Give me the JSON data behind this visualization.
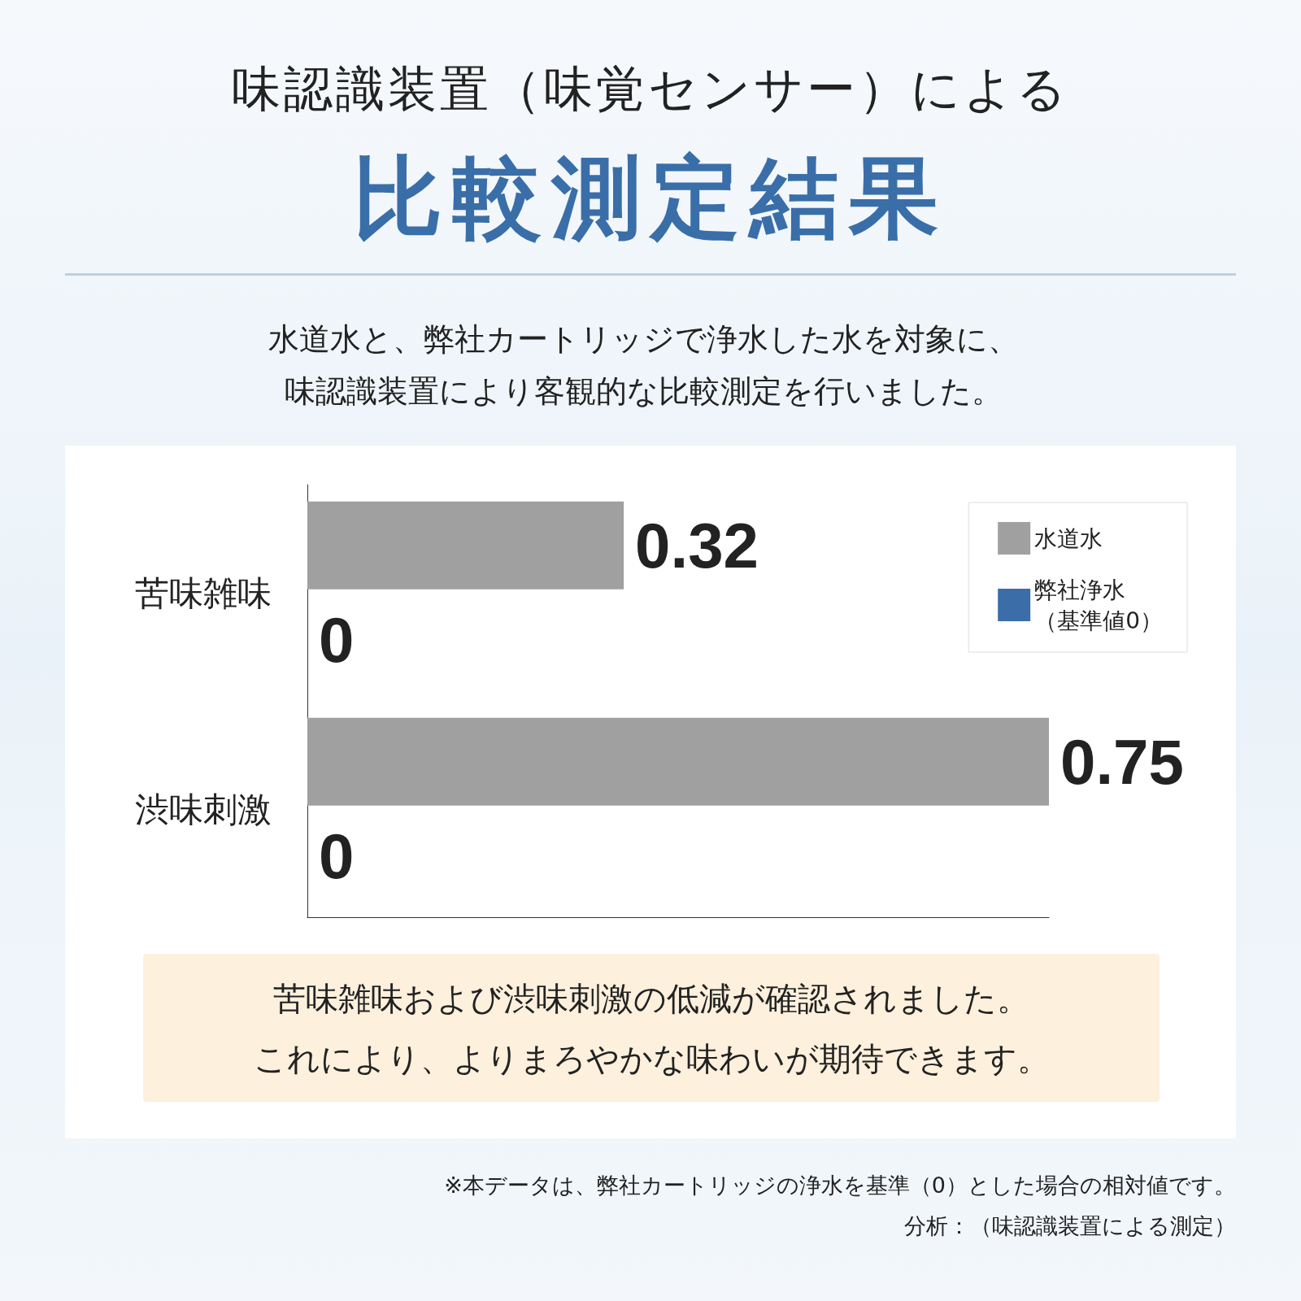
{
  "chart_data": {
    "type": "bar",
    "orientation": "horizontal",
    "title": "味認識装置（味覚センサー）による",
    "subtitle": "比較測定結果",
    "annotations": [
      "水道水と、弊社カートリッジで浄水した水を対象に、味認識装置により客観的な比較測定を行いました。",
      "苦味雑味および渋味刺激の低減が確認されました。",
      "これにより、よりまろやかな味わいが期待できます。",
      "※本データは、弊社カートリッジの浄水を基準（0）とした場合の相対値です。",
      "分析：（味認識装置による測定）"
    ],
    "categories": [
      "苦味雑味",
      "渋味刺激"
    ],
    "series": [
      {
        "name": "水道水",
        "color": "#a0a0a0",
        "values": [
          0.32,
          0.75
        ]
      },
      {
        "name": "弊社浄水（基準値0）",
        "color": "#3b6ea8",
        "values": [
          0,
          0
        ]
      }
    ],
    "data_labels": true,
    "legend": "top right",
    "grid": false
  }
}
